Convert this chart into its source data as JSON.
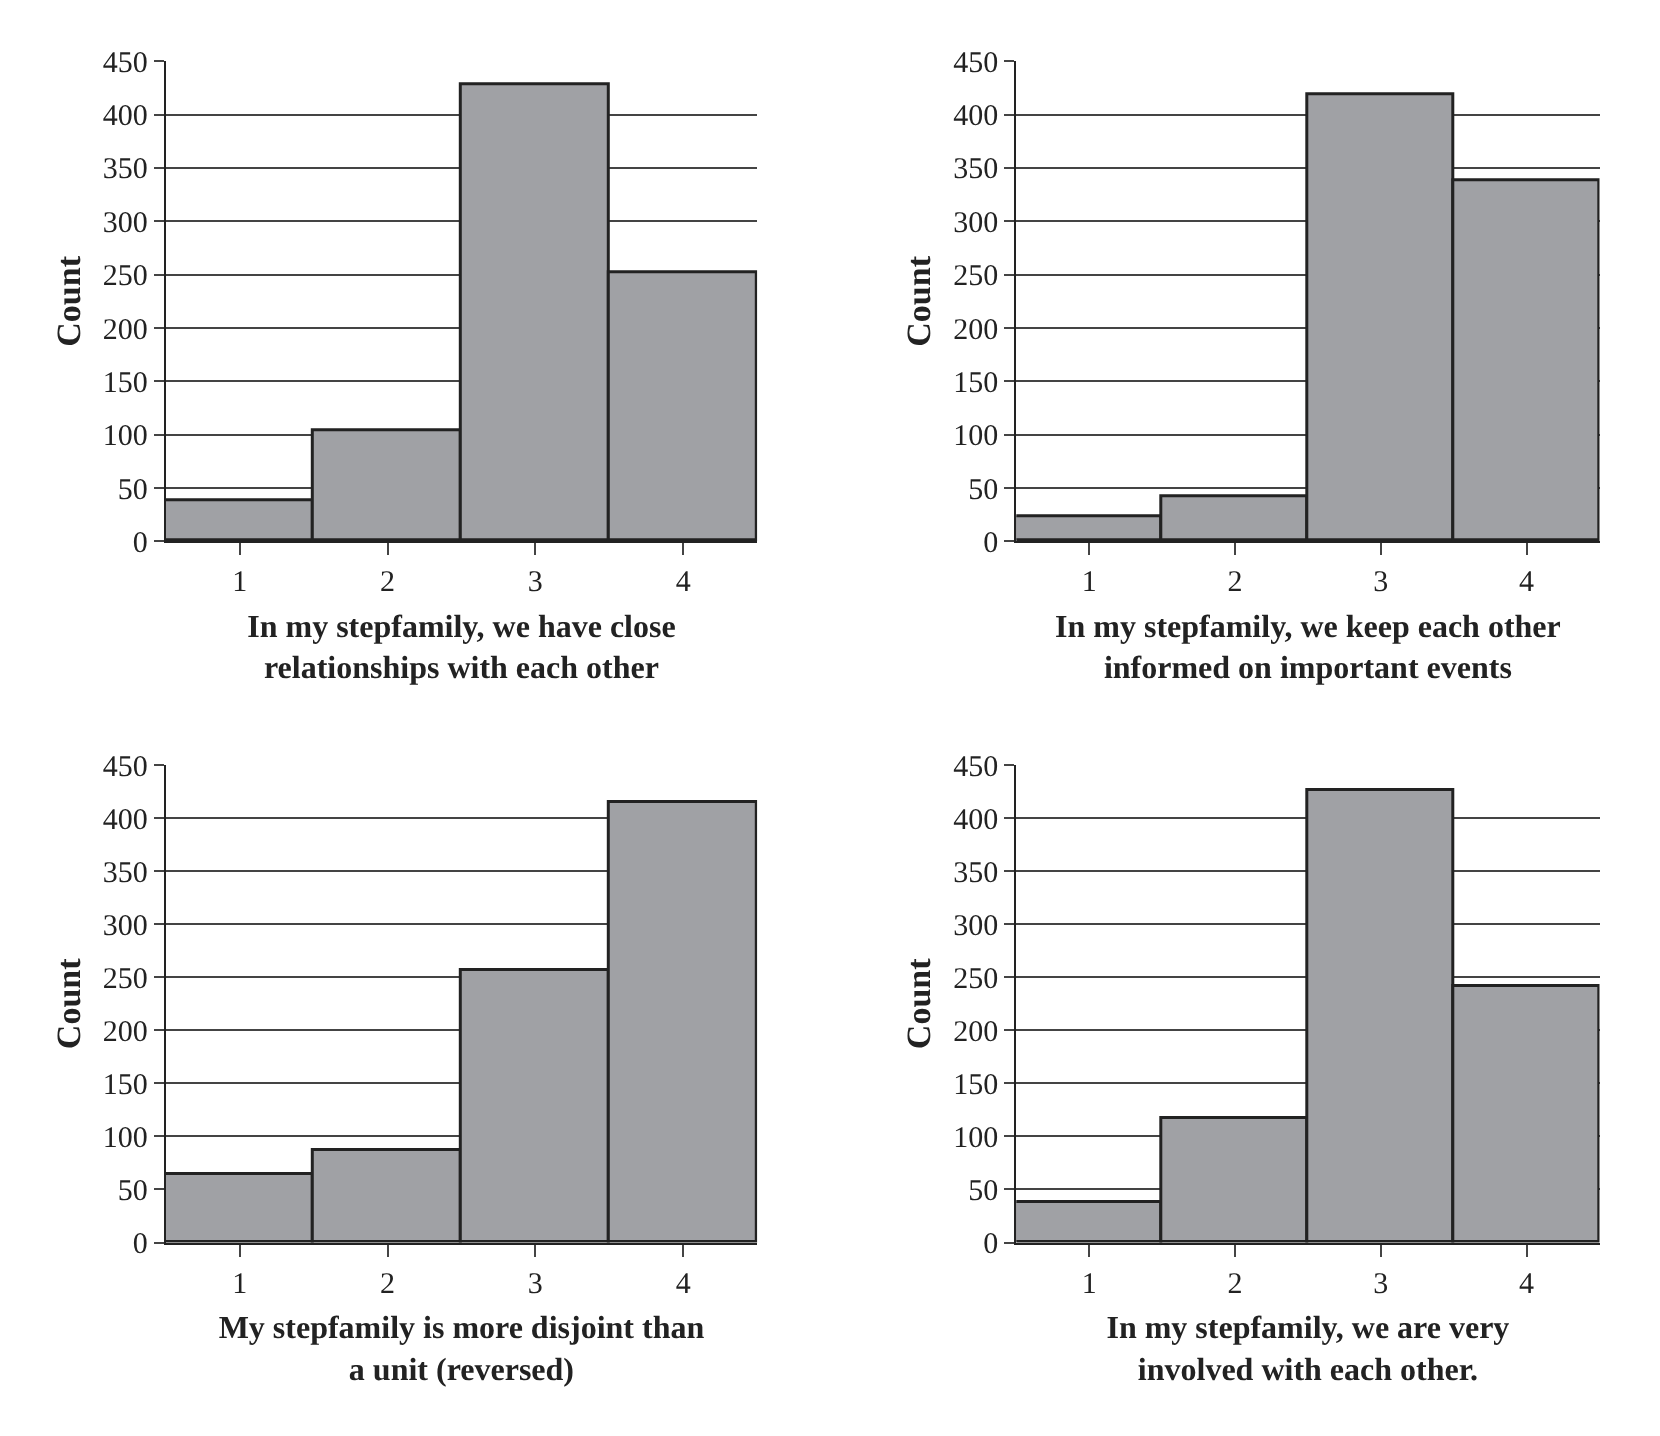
{
  "chart_data": [
    {
      "type": "bar",
      "xlabel": "In my stepfamily, we have close relationships with each other",
      "ylabel": "Count",
      "categories": [
        "1",
        "2",
        "3",
        "4"
      ],
      "values": [
        38,
        104,
        428,
        251
      ],
      "color": "#a0a1a5",
      "ylim": [
        0,
        450
      ],
      "yticks": [
        0,
        50,
        100,
        150,
        200,
        250,
        300,
        350,
        400,
        450
      ],
      "grid": "y"
    },
    {
      "type": "bar",
      "xlabel": "In my stepfamily, we keep each other informed on important events",
      "ylabel": "Count",
      "categories": [
        "1",
        "2",
        "3",
        "4"
      ],
      "values": [
        22,
        41,
        419,
        338
      ],
      "color": "#a0a1a5",
      "ylim": [
        0,
        450
      ],
      "yticks": [
        0,
        50,
        100,
        150,
        200,
        250,
        300,
        350,
        400,
        450
      ],
      "grid": "y"
    },
    {
      "type": "bar",
      "xlabel": "My stepfamily is more disjoint than a unit (reversed)",
      "ylabel": "Count",
      "categories": [
        "1",
        "2",
        "3",
        "4"
      ],
      "values": [
        63,
        87,
        256,
        415
      ],
      "color": "#a0a1a5",
      "ylim": [
        0,
        450
      ],
      "yticks": [
        0,
        50,
        100,
        150,
        200,
        250,
        300,
        350,
        400,
        450
      ],
      "grid": "y"
    },
    {
      "type": "bar",
      "xlabel": "In my stepfamily, we are very involved with each other.",
      "ylabel": "Count",
      "categories": [
        "1",
        "2",
        "3",
        "4"
      ],
      "values": [
        37,
        117,
        425,
        240
      ],
      "color": "#a0a1a5",
      "ylim": [
        0,
        450
      ],
      "yticks": [
        0,
        50,
        100,
        150,
        200,
        250,
        300,
        350,
        400,
        450
      ],
      "grid": "y"
    }
  ]
}
